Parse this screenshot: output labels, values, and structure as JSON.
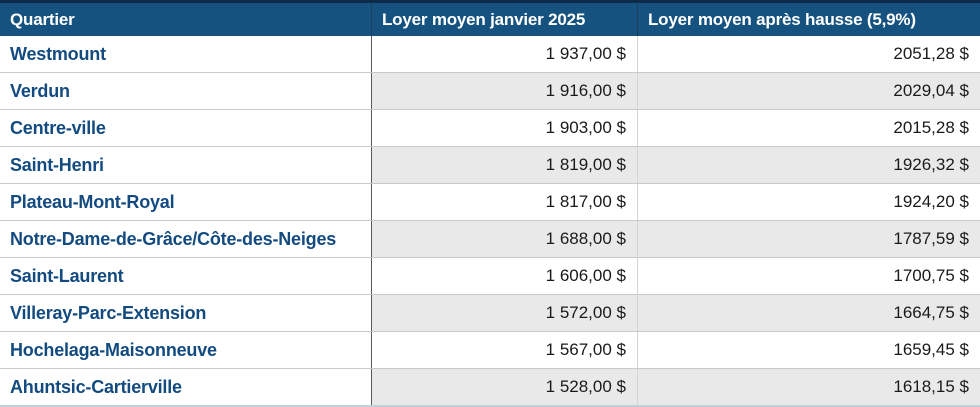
{
  "chart_data": {
    "type": "table",
    "title": "",
    "columns": [
      "Quartier",
      "Loyer moyen janvier 2025",
      "Loyer moyen après hausse (5,9%)"
    ],
    "rows": [
      {
        "quartier": "Westmount",
        "loyer_janvier_2025": "1 937,00 $",
        "loyer_apres_hausse": "2051,28 $"
      },
      {
        "quartier": "Verdun",
        "loyer_janvier_2025": "1 916,00 $",
        "loyer_apres_hausse": "2029,04 $"
      },
      {
        "quartier": "Centre-ville",
        "loyer_janvier_2025": "1 903,00 $",
        "loyer_apres_hausse": "2015,28 $"
      },
      {
        "quartier": "Saint-Henri",
        "loyer_janvier_2025": "1 819,00 $",
        "loyer_apres_hausse": "1926,32 $"
      },
      {
        "quartier": "Plateau-Mont-Royal",
        "loyer_janvier_2025": "1 817,00 $",
        "loyer_apres_hausse": "1924,20 $"
      },
      {
        "quartier": "Notre-Dame-de-Grâce/Côte-des-Neiges",
        "loyer_janvier_2025": "1 688,00 $",
        "loyer_apres_hausse": "1787,59 $"
      },
      {
        "quartier": "Saint-Laurent",
        "loyer_janvier_2025": "1 606,00 $",
        "loyer_apres_hausse": "1700,75 $"
      },
      {
        "quartier": "Villeray-Parc-Extension",
        "loyer_janvier_2025": "1 572,00 $",
        "loyer_apres_hausse": "1664,75 $"
      },
      {
        "quartier": "Hochelaga-Maisonneuve",
        "loyer_janvier_2025": "1 567,00 $",
        "loyer_apres_hausse": "1659,45 $"
      },
      {
        "quartier": "Ahuntsic-Cartierville",
        "loyer_janvier_2025": "1 528,00 $",
        "loyer_apres_hausse": "1618,15 $"
      }
    ]
  },
  "colors": {
    "header_bg": "#155280",
    "header_top_border": "#0d2b49",
    "header_sep": "#1c3f5e",
    "header_text": "#ffffff",
    "row_label": "#134b80",
    "value_text": "#1a1a1a",
    "stripe": "#e9e9e9",
    "row_border": "#c9c9c9",
    "col1_border": "#58595b",
    "col23_border": "#d4d4d4",
    "bottom_border": "#c3ced8"
  }
}
